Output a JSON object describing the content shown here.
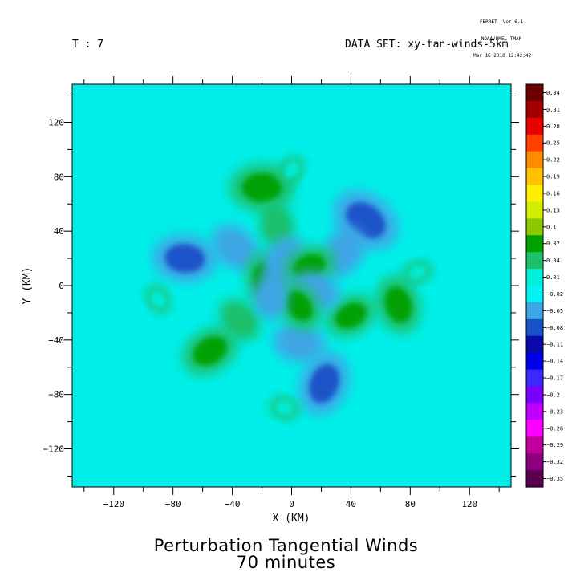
{
  "header": {
    "line1": "FERRET  Ver.6.1",
    "line2": "NOAA/PMEL TMAP",
    "line3": "Mar 16 2010 12:42:42"
  },
  "time_label": "T : 7",
  "dataset_label": "DATA SET: xy-tan-winds-5km",
  "chart_data": {
    "type": "heatmap",
    "title": "Perturbation Tangential Winds",
    "subtitle": "70 minutes",
    "xlabel": "X (KM)",
    "ylabel": "Y (KM)",
    "xlim": [
      -148,
      148
    ],
    "ylim": [
      -148,
      148
    ],
    "x_ticks": [
      -120,
      -80,
      -40,
      0,
      40,
      80,
      120
    ],
    "y_ticks": [
      -120,
      -80,
      -40,
      0,
      40,
      80,
      120
    ],
    "colorbar": {
      "levels": [
        0.34,
        0.31,
        0.28,
        0.25,
        0.22,
        0.19,
        0.16,
        0.13,
        0.1,
        0.07,
        0.04,
        0.01,
        -0.02,
        -0.05,
        -0.08,
        -0.11,
        -0.14,
        -0.17,
        -0.2,
        -0.23,
        -0.26,
        -0.29,
        -0.32,
        -0.35
      ],
      "colors": [
        "#6a0000",
        "#a00000",
        "#e60000",
        "#ff4000",
        "#ff8c00",
        "#ffc200",
        "#ffee00",
        "#d2ee00",
        "#8cc800",
        "#00a000",
        "#1fbf6a",
        "#00eedc",
        "#00f2f2",
        "#3fa6e6",
        "#1a50c8",
        "#0a0aa8",
        "#0000e6",
        "#3a28ff",
        "#7800ff",
        "#c000ff",
        "#ff00ff",
        "#c0009a",
        "#8c0080",
        "#5a0050"
      ]
    },
    "features": [
      {
        "x": -20,
        "y": 72,
        "value": 0.08
      },
      {
        "x": 50,
        "y": 48,
        "value": -0.09
      },
      {
        "x": 72,
        "y": -14,
        "value": 0.07
      },
      {
        "x": 22,
        "y": -72,
        "value": -0.08
      },
      {
        "x": -55,
        "y": -48,
        "value": 0.07
      },
      {
        "x": -72,
        "y": 20,
        "value": -0.08
      },
      {
        "x": -38,
        "y": 28,
        "value": -0.06
      },
      {
        "x": -10,
        "y": 44,
        "value": 0.05
      },
      {
        "x": 35,
        "y": 25,
        "value": -0.06
      },
      {
        "x": 40,
        "y": -22,
        "value": 0.06
      },
      {
        "x": 5,
        "y": -42,
        "value": -0.06
      },
      {
        "x": -35,
        "y": -25,
        "value": 0.05
      },
      {
        "x": -18,
        "y": 5,
        "value": 0.06
      },
      {
        "x": -5,
        "y": 18,
        "value": -0.06
      },
      {
        "x": 12,
        "y": 14,
        "value": 0.06
      },
      {
        "x": 15,
        "y": -4,
        "value": -0.06
      },
      {
        "x": 5,
        "y": -15,
        "value": 0.06
      },
      {
        "x": -14,
        "y": -8,
        "value": -0.05
      },
      {
        "x": 0,
        "y": 85,
        "value": 0.02
      },
      {
        "x": 85,
        "y": 10,
        "value": 0.02
      },
      {
        "x": -5,
        "y": -90,
        "value": 0.02
      },
      {
        "x": -90,
        "y": -10,
        "value": 0.02
      }
    ]
  }
}
